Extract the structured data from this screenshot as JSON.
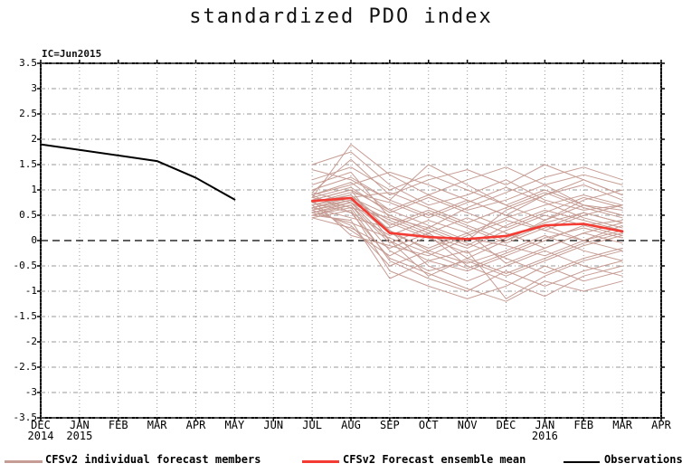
{
  "title": "standardized PDO index",
  "ic_label": "IC=Jun2015",
  "colors": {
    "members": "#c69d94",
    "mean": "#f33b34",
    "observations": "#000000",
    "grid": "#999999",
    "zero_line": "#000000",
    "frame": "#000000"
  },
  "legend": {
    "members_label": "CFSv2 individual forecast members",
    "mean_label": "CFSv2 Forecast ensemble mean",
    "observations_label": "Observations"
  },
  "chart_data": {
    "type": "line",
    "title": "standardized PDO index",
    "annotation": "IC=Jun2015",
    "ylabel": "",
    "xlabel": "",
    "ylim": [
      -3.5,
      3.5
    ],
    "ytick_step": 0.5,
    "grid": true,
    "zero_line": "dashed",
    "legend_position": "bottom",
    "yticks": [
      {
        "label": "3.5",
        "value": 3.5
      },
      {
        "label": "3",
        "value": 3.0
      },
      {
        "label": "2.5",
        "value": 2.5
      },
      {
        "label": "2",
        "value": 2.0
      },
      {
        "label": "1.5",
        "value": 1.5
      },
      {
        "label": "1",
        "value": 1.0
      },
      {
        "label": "0.5",
        "value": 0.5
      },
      {
        "label": "0",
        "value": 0.0
      },
      {
        "label": "-0.5",
        "value": -0.5
      },
      {
        "label": "-1",
        "value": -1.0
      },
      {
        "label": "-1.5",
        "value": -1.5
      },
      {
        "label": "-2",
        "value": -2.0
      },
      {
        "label": "-2.5",
        "value": -2.5
      },
      {
        "label": "-3",
        "value": -3.0
      },
      {
        "label": "-3.5",
        "value": -3.5
      }
    ],
    "xticks": [
      {
        "label": "DEC",
        "year": "2014"
      },
      {
        "label": "JAN",
        "year": "2015"
      },
      {
        "label": "FEB",
        "year": ""
      },
      {
        "label": "MAR",
        "year": ""
      },
      {
        "label": "APR",
        "year": ""
      },
      {
        "label": "MAY",
        "year": ""
      },
      {
        "label": "JUN",
        "year": ""
      },
      {
        "label": "JUL",
        "year": ""
      },
      {
        "label": "AUG",
        "year": ""
      },
      {
        "label": "SEP",
        "year": ""
      },
      {
        "label": "OCT",
        "year": ""
      },
      {
        "label": "NOV",
        "year": ""
      },
      {
        "label": "DEC",
        "year": ""
      },
      {
        "label": "JAN",
        "year": "2016"
      },
      {
        "label": "FEB",
        "year": ""
      },
      {
        "label": "MAR",
        "year": ""
      },
      {
        "label": "APR",
        "year": ""
      }
    ],
    "series": [
      {
        "name": "Observations",
        "color": "#000000",
        "width": 2,
        "x_start_index": 0,
        "x_months": [
          "DEC 2014",
          "JAN 2015",
          "FEB 2015",
          "MAR 2015",
          "APR 2015",
          "MAY 2015"
        ],
        "values": [
          1.9,
          1.79,
          1.68,
          1.57,
          1.24,
          0.81
        ]
      },
      {
        "name": "CFSv2 Forecast ensemble mean",
        "color": "#f33b34",
        "width": 2.6,
        "x_start_index": 7,
        "x_months": [
          "JUL 2015",
          "AUG 2015",
          "SEP 2015",
          "OCT 2015",
          "NOV 2015",
          "DEC 2015",
          "JAN 2016",
          "FEB 2016",
          "MAR 2016"
        ],
        "values": [
          0.78,
          0.84,
          0.15,
          0.07,
          0.03,
          0.09,
          0.3,
          0.33,
          0.18
        ]
      }
    ],
    "members_series": {
      "name": "CFSv2 individual forecast members",
      "color": "#c69d94",
      "width": 1,
      "x_start_index": 7,
      "x_months": [
        "JUL 2015",
        "AUG 2015",
        "SEP 2015",
        "OCT 2015",
        "NOV 2015",
        "DEC 2015",
        "JAN 2016",
        "FEB 2016",
        "MAR 2016"
      ],
      "members": [
        [
          0.85,
          1.9,
          1.3,
          0.9,
          0.6,
          0.8,
          1.1,
          1.3,
          1.1
        ],
        [
          0.95,
          1.6,
          0.9,
          1.2,
          1.4,
          1.1,
          1.5,
          1.2,
          0.9
        ],
        [
          1.5,
          1.75,
          1.1,
          0.7,
          0.9,
          1.2,
          0.8,
          0.6,
          0.7
        ],
        [
          1.4,
          1.2,
          0.8,
          1.5,
          1.1,
          0.7,
          0.4,
          0.8,
          1.0
        ],
        [
          1.1,
          1.35,
          0.45,
          0.25,
          0.65,
          0.95,
          1.25,
          1.45,
          1.2
        ],
        [
          0.9,
          1.1,
          1.35,
          1.1,
          0.8,
          0.5,
          0.9,
          1.1,
          0.8
        ],
        [
          0.8,
          1.0,
          0.6,
          0.9,
          1.2,
          1.45,
          1.1,
          0.7,
          0.5
        ],
        [
          0.75,
          0.9,
          0.3,
          0.6,
          0.3,
          0.0,
          0.4,
          0.7,
          0.6
        ],
        [
          0.7,
          0.85,
          0.5,
          0.2,
          -0.1,
          0.3,
          0.6,
          0.4,
          0.2
        ],
        [
          0.65,
          0.8,
          0.2,
          -0.2,
          0.1,
          0.4,
          0.2,
          0.0,
          0.3
        ],
        [
          0.6,
          0.75,
          0.0,
          -0.4,
          -0.6,
          -0.3,
          0.0,
          0.3,
          0.4
        ],
        [
          0.55,
          0.7,
          -0.2,
          -0.6,
          -0.4,
          -0.7,
          -0.4,
          -0.1,
          0.1
        ],
        [
          0.5,
          0.65,
          -0.4,
          -0.75,
          -1.0,
          -0.6,
          -0.9,
          -0.6,
          -0.4
        ],
        [
          0.45,
          0.6,
          -0.6,
          -0.9,
          -1.15,
          -0.9,
          -0.5,
          -0.8,
          -0.6
        ],
        [
          0.5,
          0.4,
          -0.75,
          -0.4,
          -0.2,
          -1.15,
          -0.7,
          -0.4,
          -0.2
        ],
        [
          0.6,
          0.3,
          -0.5,
          -0.2,
          -0.45,
          -0.2,
          0.1,
          -0.2,
          -0.4
        ],
        [
          0.7,
          0.2,
          -0.3,
          0.1,
          -0.15,
          0.2,
          0.5,
          0.3,
          0.1
        ],
        [
          0.8,
          0.1,
          -0.1,
          -0.3,
          0.05,
          -0.1,
          -0.3,
          0.0,
          0.2
        ],
        [
          0.9,
          0.55,
          0.1,
          0.4,
          0.15,
          0.45,
          0.7,
          0.9,
          0.7
        ],
        [
          0.95,
          0.75,
          0.35,
          0.05,
          -0.25,
          0.05,
          0.35,
          0.55,
          0.35
        ],
        [
          0.85,
          1.05,
          0.55,
          0.85,
          0.55,
          0.25,
          0.55,
          0.85,
          0.65
        ],
        [
          0.75,
          0.95,
          0.75,
          0.45,
          0.75,
          1.05,
          0.75,
          0.45,
          0.25
        ],
        [
          0.65,
          0.85,
          0.95,
          0.65,
          0.35,
          0.65,
          0.95,
          0.65,
          0.45
        ],
        [
          0.55,
          0.75,
          0.15,
          -0.15,
          0.15,
          -0.45,
          -0.15,
          0.15,
          0.35
        ],
        [
          0.5,
          0.7,
          -0.05,
          0.25,
          -0.05,
          -0.35,
          -0.65,
          -0.35,
          -0.15
        ],
        [
          0.6,
          0.8,
          0.4,
          0.1,
          -0.5,
          -0.8,
          -1.1,
          -0.7,
          -0.5
        ],
        [
          0.7,
          0.9,
          0.2,
          -0.5,
          -0.8,
          -0.5,
          -0.2,
          -0.5,
          -0.7
        ],
        [
          0.8,
          1.0,
          0.0,
          -0.7,
          -0.35,
          0.0,
          0.3,
          0.0,
          -0.2
        ],
        [
          0.9,
          1.15,
          0.6,
          0.3,
          0.0,
          0.6,
          0.9,
          1.2,
          0.9
        ],
        [
          1.0,
          1.25,
          0.8,
          0.5,
          0.8,
          0.5,
          0.2,
          0.5,
          0.7
        ],
        [
          1.2,
          1.45,
          1.0,
          1.3,
          1.0,
          0.7,
          1.0,
          0.7,
          0.5
        ],
        [
          0.55,
          0.35,
          0.05,
          -0.25,
          -0.55,
          -0.25,
          0.05,
          0.25,
          0.05
        ],
        [
          0.45,
          0.25,
          -0.15,
          0.15,
          -0.35,
          -0.65,
          -0.35,
          -0.05,
          0.15
        ],
        [
          0.65,
          0.45,
          0.25,
          0.55,
          0.25,
          -0.05,
          0.25,
          0.55,
          0.35
        ],
        [
          0.75,
          0.55,
          -0.35,
          -0.65,
          -0.95,
          -1.2,
          -0.8,
          -1.0,
          -0.8
        ],
        [
          0.85,
          0.65,
          0.45,
          0.15,
          0.45,
          0.15,
          -0.15,
          0.15,
          -0.05
        ]
      ]
    }
  }
}
